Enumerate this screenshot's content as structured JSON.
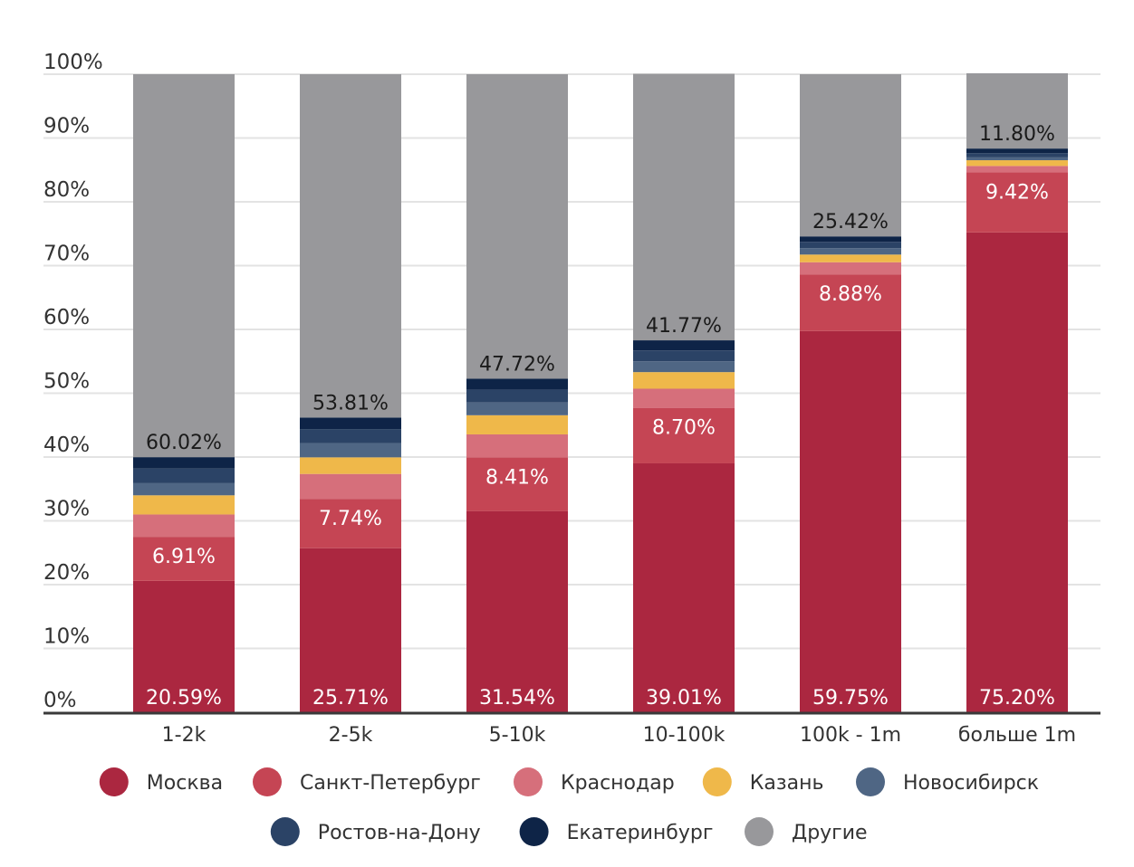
{
  "chart_data": {
    "type": "bar",
    "stacked": true,
    "categories": [
      "1-2k",
      "2-5k",
      "5-10k",
      "10-100k",
      "100k - 1m",
      "больше 1m"
    ],
    "y_ticks": [
      "0%",
      "10%",
      "20%",
      "30%",
      "40%",
      "50%",
      "60%",
      "70%",
      "80%",
      "90%",
      "100%"
    ],
    "ylim": [
      0,
      100
    ],
    "grid": true,
    "legend_position": "bottom",
    "series": [
      {
        "name": "Москва",
        "color": "#ab2740",
        "values": [
          20.59,
          25.71,
          31.54,
          39.01,
          59.75,
          75.2
        ],
        "labels": [
          "20.59%",
          "25.71%",
          "31.54%",
          "39.01%",
          "59.75%",
          "75.20%"
        ],
        "label_color": "#ffffff"
      },
      {
        "name": "Санкт-Петербург",
        "color": "#c54554",
        "values": [
          6.91,
          7.74,
          8.41,
          8.7,
          8.88,
          9.42
        ],
        "labels": [
          "6.91%",
          "7.74%",
          "8.41%",
          "8.70%",
          "8.88%",
          "9.42%"
        ],
        "label_color": "#ffffff"
      },
      {
        "name": "Краснодар",
        "color": "#d66f7b",
        "values": [
          3.5,
          3.9,
          3.6,
          3.0,
          1.9,
          1.0
        ]
      },
      {
        "name": "Казань",
        "color": "#efb84a",
        "values": [
          3.0,
          2.6,
          3.0,
          2.6,
          1.2,
          0.9
        ]
      },
      {
        "name": "Новосибирск",
        "color": "#4f6684",
        "values": [
          1.9,
          2.2,
          2.0,
          1.7,
          1.0,
          0.5
        ]
      },
      {
        "name": "Ростов-на-Дону",
        "color": "#2b4366",
        "values": [
          2.3,
          2.2,
          2.0,
          1.7,
          1.0,
          0.6
        ]
      },
      {
        "name": "Екатеринбург",
        "color": "#0e2447",
        "values": [
          1.78,
          1.84,
          1.73,
          1.58,
          0.85,
          0.73
        ]
      },
      {
        "name": "Другие",
        "color": "#98989b",
        "values": [
          60.02,
          53.81,
          47.72,
          41.77,
          25.42,
          11.8
        ],
        "labels": [
          "60.02%",
          "53.81%",
          "47.72%",
          "41.77%",
          "25.42%",
          "11.80%"
        ],
        "label_color": "#1a1a1a"
      }
    ]
  }
}
